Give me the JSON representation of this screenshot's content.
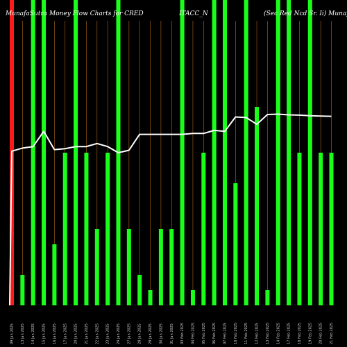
{
  "chart_data": {
    "type": "bar",
    "title_segments": [
      "MunafaSutra Money Flow Charts for CRED",
      "ITACC_N",
      "(Sec Red Ncd Sr. Ii) MunafaSutra.com"
    ],
    "xlabel": "",
    "ylabel": "",
    "ylim": [
      0,
      100
    ],
    "grid": false,
    "legend": "none",
    "colors": {
      "background": "#000000",
      "bar_up": "#1aff1a",
      "bar_down": "#ff1a1a",
      "line": "#ffffff",
      "vertical_guide": "#b06a14",
      "tick_text": "#cfcfcf"
    },
    "categories": [
      "09 Jan 2025",
      "13 Jan 2025",
      "14 Jan 2025",
      "15 Jan 2025",
      "16 Jan 2025",
      "17 Jan 2025",
      "20 Jan 2025",
      "21 Jan 2025",
      "22 Jan 2025",
      "23 Jan 2025",
      "24 Jan 2025",
      "27 Jan 2025",
      "28 Jan 2025",
      "29 Jan 2025",
      "30 Jan 2025",
      "31 Jan 2025",
      "03 Feb 2025",
      "04 Feb 2025",
      "05 Feb 2025",
      "06 Feb 2025",
      "07 Feb 2025",
      "10 Feb 2025",
      "11 Feb 2025",
      "12 Feb 2025",
      "13 Feb 2025",
      "14 Feb 2025",
      "17 Feb 2025",
      "18 Feb 2025",
      "19 Feb 2025",
      "20 Feb 2025",
      "21 Feb 2025"
    ],
    "series": [
      {
        "type": "bar",
        "values": [
          100,
          10,
          100,
          100,
          20,
          50,
          100,
          50,
          25,
          50,
          100,
          25,
          10,
          5,
          25,
          25,
          100,
          5,
          50,
          100,
          100,
          40,
          100,
          65,
          5,
          100,
          100,
          50,
          100,
          50,
          50
        ],
        "colors": [
          "down",
          "up",
          "up",
          "up",
          "up",
          "up",
          "up",
          "up",
          "up",
          "up",
          "up",
          "up",
          "up",
          "up",
          "up",
          "up",
          "up",
          "up",
          "up",
          "up",
          "up",
          "up",
          "up",
          "up",
          "up",
          "up",
          "up",
          "up",
          "up",
          "up",
          "up"
        ]
      },
      {
        "type": "line",
        "values": [
          50.5,
          51.5,
          52.0,
          57.0,
          51.0,
          51.3,
          52.0,
          52.0,
          53.0,
          52.0,
          50.0,
          50.8,
          56.0,
          56.0,
          56.0,
          56.0,
          56.0,
          56.3,
          56.3,
          57.3,
          57.0,
          61.7,
          61.5,
          59.3,
          62.5,
          62.6,
          62.4,
          62.3,
          62.1,
          62.0,
          61.9
        ]
      }
    ]
  }
}
